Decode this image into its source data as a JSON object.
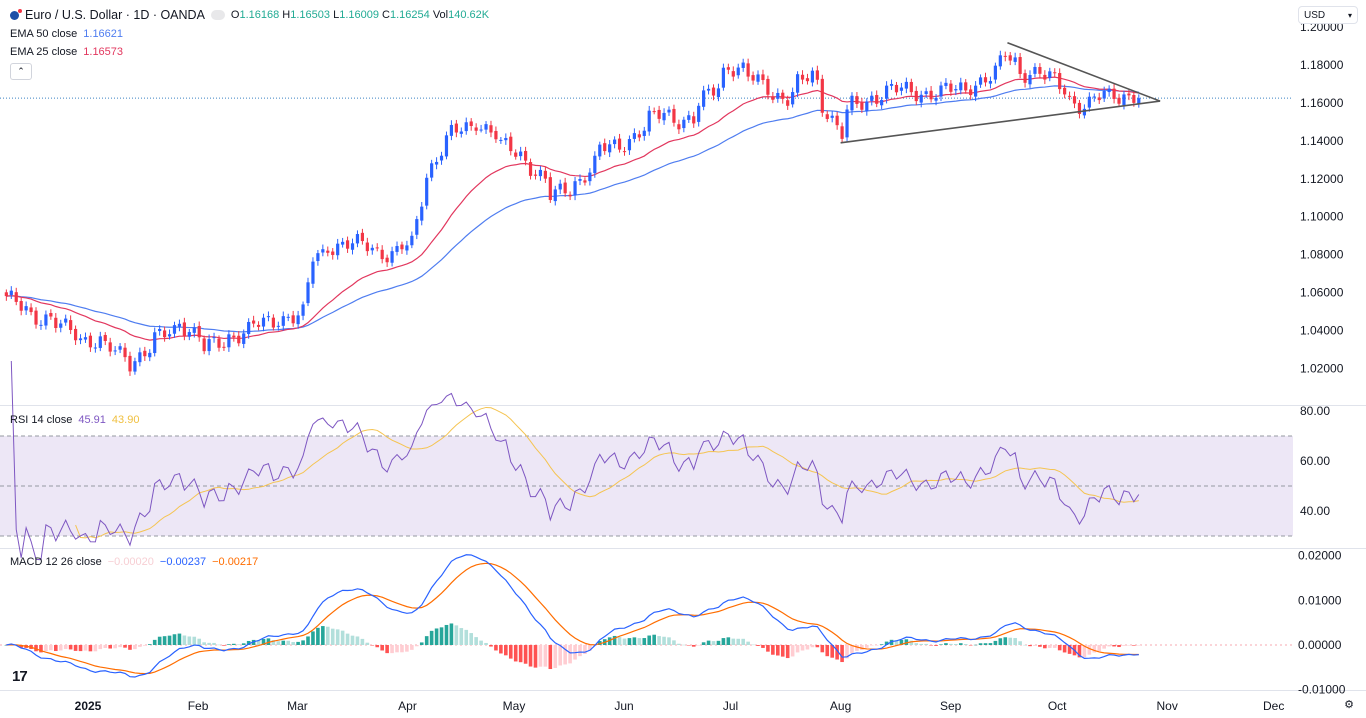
{
  "header": {
    "symbol_title": "Euro / U.S. Dollar · 1D · OANDA",
    "o_label": "O",
    "o": "1.16168",
    "h_label": "H",
    "h": "1.16503",
    "l_label": "L",
    "l": "1.16009",
    "c_label": "C",
    "c": "1.16254",
    "vol_label": "Vol",
    "vol": "140.62K"
  },
  "indicators": {
    "ema50_label": "EMA 50 close",
    "ema50_value": "1.16621",
    "ema25_label": "EMA 25 close",
    "ema25_value": "1.16573",
    "rsi_label": "RSI 14 close",
    "rsi_value": "45.91",
    "rsi_ma_value": "43.90",
    "macd_label": "MACD 12 26 close",
    "macd_hist": "−0.00020",
    "macd_value": "−0.00237",
    "macd_signal": "−0.00217"
  },
  "currency": "USD",
  "icons": {
    "collapse": "chevron-up-icon",
    "logo": "tradingview-logo",
    "settings": "gear-icon",
    "currency_dropdown": "chevron-down-icon",
    "symbol": "eurusd-flag-icon"
  },
  "chart_data": {
    "type": "candlestick",
    "symbol": "EUR/USD",
    "interval": "1D",
    "last_price": 1.16254,
    "price_axis": {
      "range": [
        1.0,
        1.2
      ],
      "ticks": [
        "1.20000",
        "1.18000",
        "1.16000",
        "1.14000",
        "1.12000",
        "1.10000",
        "1.08000",
        "1.06000",
        "1.04000",
        "1.02000"
      ]
    },
    "rsi_axis": {
      "ticks": [
        "80.00",
        "60.00",
        "40.00"
      ],
      "bands": [
        70,
        50,
        30
      ]
    },
    "macd_axis": {
      "ticks": [
        "0.02000",
        "0.01000",
        "0.00000",
        "-0.01000"
      ]
    },
    "time_axis": {
      "labels": [
        "2025",
        "Feb",
        "Mar",
        "Apr",
        "May",
        "Jun",
        "Jul",
        "Aug",
        "Sep",
        "Oct",
        "Nov",
        "Dec"
      ],
      "dates": [
        "2025-01-01",
        "2025-02-01",
        "2025-03-01",
        "2025-04-01",
        "2025-05-01",
        "2025-06-01",
        "2025-07-01",
        "2025-08-01",
        "2025-09-01",
        "2025-10-01",
        "2025-11-01",
        "2025-12-01"
      ]
    },
    "close_points": [
      [
        "2024-12-09",
        1.056
      ],
      [
        "2024-12-20",
        1.045
      ],
      [
        "2025-01-01",
        1.035
      ],
      [
        "2025-01-13",
        1.024
      ],
      [
        "2025-01-27",
        1.045
      ],
      [
        "2025-02-03",
        1.03
      ],
      [
        "2025-02-10",
        1.037
      ],
      [
        "2025-02-24",
        1.047
      ],
      [
        "2025-03-03",
        1.048
      ],
      [
        "2025-03-05",
        1.078
      ],
      [
        "2025-03-10",
        1.085
      ],
      [
        "2025-03-20",
        1.085
      ],
      [
        "2025-03-27",
        1.08
      ],
      [
        "2025-04-02",
        1.085
      ],
      [
        "2025-04-04",
        1.11
      ],
      [
        "2025-04-11",
        1.14
      ],
      [
        "2025-04-21",
        1.151
      ],
      [
        "2025-04-28",
        1.137
      ],
      [
        "2025-05-05",
        1.13
      ],
      [
        "2025-05-12",
        1.11
      ],
      [
        "2025-05-20",
        1.12
      ],
      [
        "2025-05-26",
        1.135
      ],
      [
        "2025-06-02",
        1.14
      ],
      [
        "2025-06-12",
        1.155
      ],
      [
        "2025-06-20",
        1.15
      ],
      [
        "2025-06-27",
        1.17
      ],
      [
        "2025-07-01",
        1.18
      ],
      [
        "2025-07-10",
        1.17
      ],
      [
        "2025-07-17",
        1.162
      ],
      [
        "2025-07-24",
        1.175
      ],
      [
        "2025-07-28",
        1.16
      ],
      [
        "2025-08-01",
        1.143
      ],
      [
        "2025-08-05",
        1.158
      ],
      [
        "2025-08-15",
        1.167
      ],
      [
        "2025-08-29",
        1.165
      ],
      [
        "2025-09-05",
        1.168
      ],
      [
        "2025-09-15",
        1.175
      ],
      [
        "2025-09-17",
        1.186
      ],
      [
        "2025-09-22",
        1.177
      ],
      [
        "2025-10-01",
        1.172
      ],
      [
        "2025-10-09",
        1.157
      ],
      [
        "2025-10-17",
        1.166
      ],
      [
        "2025-10-24",
        1.1625
      ]
    ],
    "trendlines": [
      {
        "from": [
          "2025-09-17",
          1.1918
        ],
        "to": [
          "2025-10-30",
          1.161
        ]
      },
      {
        "from": [
          "2025-08-01",
          1.139
        ],
        "to": [
          "2025-10-30",
          1.161
        ]
      }
    ],
    "colors": {
      "up": "#2962ff",
      "down": "#f23645",
      "ema50": "#4f7df0",
      "ema25": "#e2375e",
      "rsi": "#7e57c2",
      "rsi_ma": "#f5c451",
      "rsi_band": "#ede7f6",
      "macd": "#2962ff",
      "signal": "#ff6d00",
      "hist_up_strong": "#26a69a",
      "hist_up_weak": "#b2dfdb",
      "hist_down_strong": "#ff5252",
      "hist_down_weak": "#ffcdd2",
      "trendline": "#555555"
    }
  }
}
